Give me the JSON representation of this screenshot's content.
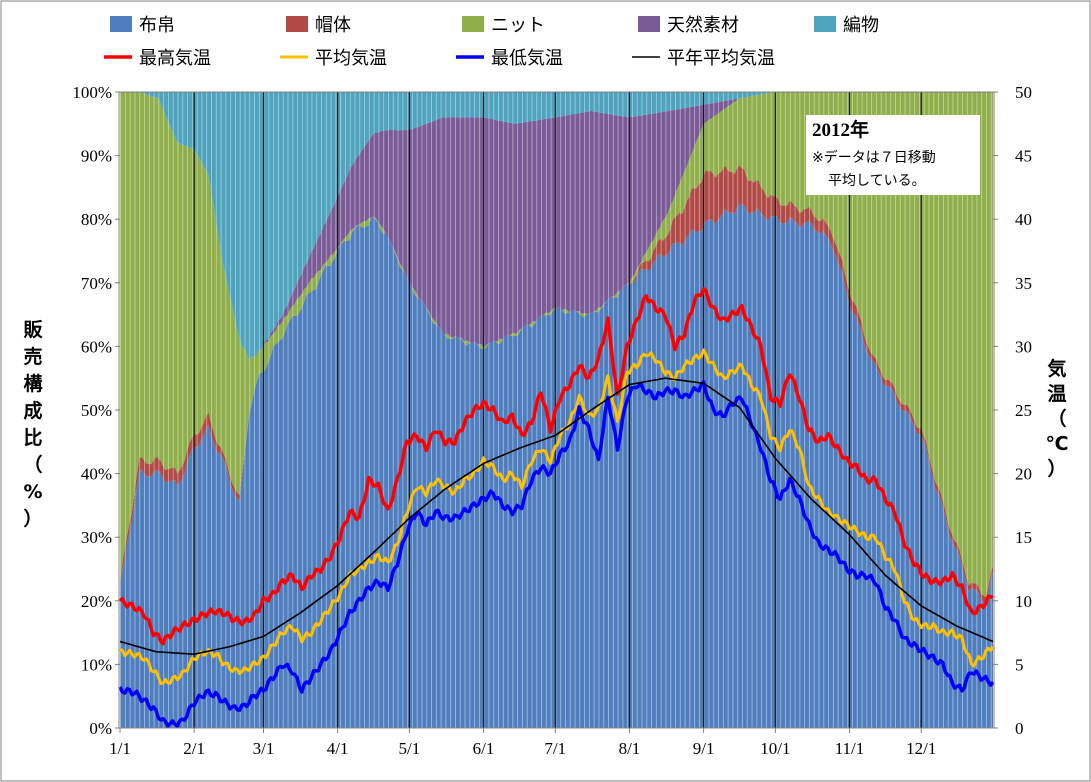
{
  "chart_data": {
    "type": "area",
    "stacking": "percent",
    "x_axis": {
      "tick_labels": [
        "1/1",
        "2/1",
        "3/1",
        "4/1",
        "5/1",
        "6/1",
        "7/1",
        "8/1",
        "9/1",
        "10/1",
        "11/1",
        "12/1"
      ],
      "tick_day_index": [
        0,
        31,
        60,
        91,
        121,
        152,
        182,
        213,
        244,
        274,
        305,
        335
      ],
      "days": 366
    },
    "y_left": {
      "label": "販売構成比（%）",
      "ylim": [
        0,
        100
      ],
      "ticks": [
        "0%",
        "10%",
        "20%",
        "30%",
        "40%",
        "50%",
        "60%",
        "70%",
        "80%",
        "90%",
        "100%"
      ]
    },
    "y_right": {
      "label": "気温（℃）",
      "ylim": [
        0,
        50
      ],
      "ticks": [
        "0",
        "5",
        "10",
        "15",
        "20",
        "25",
        "30",
        "35",
        "40",
        "45",
        "50"
      ]
    },
    "annotation": {
      "title": "2012年",
      "lines": [
        "※データは７日移動",
        "平均している。"
      ]
    },
    "legend": [
      "布帛",
      "帽体",
      "ニット",
      "天然素材",
      "編物",
      "最高気温",
      "平均気温",
      "最低気温",
      "平年平均気温"
    ],
    "legend_placement": "top",
    "area_series": [
      {
        "name": "布帛",
        "color": "#4F7EBF",
        "x": [
          0,
          8,
          16,
          24,
          31,
          37,
          43,
          50,
          54,
          58,
          68,
          79,
          91,
          97,
          106,
          111,
          121,
          135,
          152,
          165,
          182,
          197,
          213,
          229,
          244,
          259,
          274,
          290,
          298,
          305,
          315,
          335,
          345,
          355,
          362,
          365
        ],
        "values": [
          22,
          40,
          40,
          38,
          44,
          47,
          42,
          35,
          50,
          55,
          62,
          68,
          75,
          78,
          80,
          78,
          70,
          62,
          60,
          62,
          66,
          65,
          70,
          75,
          79,
          82,
          80,
          79,
          76,
          67,
          57,
          46,
          33,
          22,
          20,
          24
        ]
      },
      {
        "name": "帽体",
        "color": "#B14A46",
        "x": [
          0,
          8,
          16,
          24,
          31,
          37,
          43,
          50,
          54,
          58,
          68,
          79,
          91,
          97,
          106,
          111,
          121,
          135,
          152,
          165,
          182,
          197,
          213,
          229,
          244,
          259,
          274,
          290,
          298,
          305,
          315,
          335,
          345,
          355,
          362,
          365
        ],
        "values": [
          1,
          2,
          2,
          2,
          2,
          2,
          1,
          1,
          0,
          0,
          0,
          0,
          0,
          0,
          0,
          0,
          0,
          0,
          0,
          0,
          0,
          0,
          0,
          3,
          8,
          6,
          3,
          2,
          2,
          2,
          1,
          1,
          1,
          1,
          1,
          1
        ]
      },
      {
        "name": "ニット",
        "color": "#8FAF4A",
        "x": [
          0,
          8,
          16,
          24,
          31,
          37,
          43,
          50,
          54,
          58,
          68,
          79,
          91,
          97,
          106,
          111,
          121,
          135,
          152,
          165,
          182,
          197,
          213,
          229,
          244,
          259,
          274,
          290,
          298,
          305,
          315,
          335,
          345,
          355,
          362,
          365
        ],
        "values": [
          77,
          58,
          57,
          52,
          45,
          38,
          30,
          25,
          8,
          4,
          2,
          2,
          0.5,
          0.5,
          0.5,
          0,
          0,
          0,
          0,
          0,
          0,
          0,
          0,
          3,
          8,
          11,
          17,
          19,
          22,
          31,
          42,
          53,
          66,
          77,
          79,
          75
        ]
      },
      {
        "name": "天然素材",
        "color": "#7A5A97",
        "x": [
          0,
          8,
          16,
          24,
          31,
          37,
          43,
          50,
          54,
          58,
          68,
          79,
          91,
          97,
          106,
          111,
          121,
          135,
          152,
          165,
          182,
          197,
          213,
          229,
          244,
          259,
          274,
          290,
          298,
          305,
          315,
          335,
          345,
          355,
          362,
          365
        ],
        "values": [
          0,
          0,
          0,
          0,
          0,
          0,
          0,
          0,
          0,
          0,
          1,
          4,
          8,
          10,
          13,
          16,
          24,
          34,
          36,
          33,
          30,
          32,
          26,
          16,
          3,
          0,
          0,
          0,
          0,
          0,
          0,
          0,
          0,
          0,
          0,
          0
        ]
      },
      {
        "name": "編物",
        "color": "#4EA3BE",
        "x": [
          0,
          8,
          16,
          24,
          31,
          37,
          43,
          50,
          54,
          58,
          68,
          79,
          91,
          97,
          106,
          111,
          121,
          135,
          152,
          165,
          182,
          197,
          213,
          229,
          244,
          259,
          274,
          290,
          298,
          305,
          315,
          335,
          345,
          355,
          362,
          365
        ],
        "values": [
          0,
          0,
          1,
          8,
          9,
          13,
          27,
          39,
          42,
          41,
          35,
          26,
          16.5,
          11.5,
          6.5,
          6,
          6,
          4,
          4,
          5,
          4,
          3,
          4,
          3,
          2,
          1,
          0,
          0,
          0,
          0,
          0,
          0,
          0,
          0,
          0,
          0
        ]
      }
    ],
    "line_series": [
      {
        "name": "最高気温",
        "color": "#FF0000",
        "width": 3.5,
        "x": [
          0,
          6,
          10,
          14,
          18,
          22,
          26,
          31,
          36,
          40,
          44,
          48,
          52,
          56,
          60,
          64,
          68,
          72,
          76,
          80,
          84,
          88,
          92,
          96,
          100,
          104,
          108,
          112,
          116,
          120,
          124,
          128,
          132,
          136,
          140,
          144,
          148,
          152,
          156,
          160,
          164,
          168,
          172,
          176,
          180,
          184,
          188,
          192,
          196,
          200,
          204,
          208,
          212,
          216,
          220,
          224,
          228,
          232,
          236,
          240,
          244,
          248,
          252,
          256,
          260,
          264,
          268,
          272,
          276,
          280,
          284,
          288,
          292,
          296,
          300,
          304,
          308,
          312,
          316,
          320,
          324,
          328,
          332,
          336,
          340,
          344,
          348,
          352,
          356,
          360,
          365
        ],
        "values": [
          10,
          9.5,
          9,
          7.5,
          6.8,
          7.5,
          8,
          8.5,
          9,
          9.2,
          9,
          8.5,
          8.3,
          8.8,
          10,
          10.5,
          11.5,
          12,
          11,
          12,
          12.5,
          13.5,
          15,
          17,
          16.5,
          19.5,
          19,
          17,
          19.5,
          22.5,
          23,
          22,
          23.5,
          22.5,
          22.5,
          24,
          25,
          25.5,
          25,
          24,
          24.5,
          23,
          24,
          26.5,
          23.5,
          26,
          27,
          28.5,
          27.5,
          29,
          32,
          26,
          30,
          32,
          34,
          33,
          32.5,
          30,
          31,
          33.5,
          34.5,
          33,
          32,
          32.5,
          33,
          31.5,
          30,
          26,
          25.5,
          28,
          26,
          23.5,
          22.5,
          23,
          22,
          21,
          20.5,
          19.5,
          19.5,
          18,
          17,
          14.5,
          13,
          12,
          11.5,
          11.5,
          12,
          11,
          9,
          9.5,
          10.5
        ]
      },
      {
        "name": "平均気温",
        "color": "#FFC000",
        "width": 3,
        "x": [
          0,
          6,
          10,
          14,
          18,
          22,
          26,
          31,
          36,
          40,
          44,
          48,
          52,
          56,
          60,
          64,
          68,
          72,
          76,
          80,
          84,
          88,
          92,
          96,
          100,
          104,
          108,
          112,
          116,
          120,
          124,
          128,
          132,
          136,
          140,
          144,
          148,
          152,
          156,
          160,
          164,
          168,
          172,
          176,
          180,
          184,
          188,
          192,
          196,
          200,
          204,
          208,
          212,
          216,
          220,
          224,
          228,
          232,
          236,
          240,
          244,
          248,
          252,
          256,
          260,
          264,
          268,
          272,
          276,
          280,
          284,
          288,
          292,
          296,
          300,
          304,
          308,
          312,
          316,
          320,
          324,
          328,
          332,
          336,
          340,
          344,
          348,
          352,
          356,
          360,
          365
        ],
        "values": [
          6,
          5.8,
          5.5,
          4.5,
          3.5,
          3.8,
          4.2,
          5.5,
          6,
          5.8,
          5,
          4.5,
          4.5,
          5,
          5.5,
          6.5,
          7.5,
          8,
          7,
          7.5,
          8.5,
          9.5,
          10.5,
          12,
          12.5,
          13,
          13.5,
          13,
          14.5,
          17,
          19,
          18.5,
          19.5,
          19,
          18.5,
          19.5,
          20,
          21,
          20.5,
          19.5,
          20,
          19,
          21,
          22,
          21,
          23,
          24,
          26,
          24.5,
          25,
          27.5,
          24,
          28,
          28.5,
          29.5,
          29,
          28,
          27.5,
          28.5,
          29,
          29.5,
          28.5,
          27.5,
          28,
          28.5,
          27,
          26,
          23,
          22,
          23.5,
          22,
          19,
          18,
          17,
          16.5,
          16,
          15.5,
          15,
          15,
          13.5,
          12.5,
          10,
          8.5,
          8,
          8,
          7.5,
          7.5,
          7,
          5,
          5.5,
          6.5
        ]
      },
      {
        "name": "最低気温",
        "color": "#0000FF",
        "width": 3.5,
        "x": [
          0,
          6,
          10,
          14,
          18,
          22,
          26,
          31,
          36,
          40,
          44,
          48,
          52,
          56,
          60,
          64,
          68,
          72,
          76,
          80,
          84,
          88,
          92,
          96,
          100,
          104,
          108,
          112,
          116,
          120,
          124,
          128,
          132,
          136,
          140,
          144,
          148,
          152,
          156,
          160,
          164,
          168,
          172,
          176,
          180,
          184,
          188,
          192,
          196,
          200,
          204,
          208,
          212,
          216,
          220,
          224,
          228,
          232,
          236,
          240,
          244,
          248,
          252,
          256,
          260,
          264,
          268,
          272,
          276,
          280,
          284,
          288,
          292,
          296,
          300,
          304,
          308,
          312,
          316,
          320,
          324,
          328,
          332,
          336,
          340,
          344,
          348,
          352,
          356,
          360,
          365
        ],
        "values": [
          3,
          2.8,
          2.2,
          1.5,
          0.5,
          0.3,
          0.5,
          2,
          2.8,
          2.6,
          2,
          1.5,
          1.7,
          2.5,
          3,
          4,
          5,
          4.5,
          3,
          4,
          5,
          6,
          7.5,
          9,
          10,
          11,
          11.5,
          11,
          13,
          15.5,
          17,
          16,
          17,
          16.5,
          16.5,
          17,
          17.5,
          18,
          18.5,
          17.5,
          17,
          17.5,
          19.5,
          20.5,
          20,
          21.5,
          22.5,
          25,
          23.5,
          21,
          26,
          22,
          26,
          27,
          26.5,
          26,
          26.5,
          26.5,
          26,
          26.5,
          27,
          25,
          24.5,
          25.5,
          26,
          24,
          22,
          19.5,
          18,
          19.5,
          18,
          16,
          14.5,
          14,
          13.5,
          12.5,
          12,
          12,
          11.5,
          9.5,
          8.5,
          7,
          6.5,
          6,
          5.5,
          5,
          3.5,
          3,
          4.5,
          4,
          3.5
        ]
      },
      {
        "name": "平年平均気温",
        "color": "#000000",
        "width": 1.6,
        "x": [
          0,
          15,
          31,
          46,
          60,
          75,
          91,
          106,
          121,
          136,
          152,
          167,
          182,
          197,
          213,
          228,
          244,
          259,
          274,
          289,
          305,
          320,
          335,
          350,
          365
        ],
        "values": [
          6.8,
          6,
          5.8,
          6.4,
          7.2,
          9,
          11.2,
          13.8,
          16.5,
          18.8,
          20.8,
          22,
          23,
          25,
          27,
          27.5,
          27.1,
          25.2,
          21.2,
          18,
          15.2,
          12,
          9.6,
          8,
          6.8
        ]
      }
    ]
  }
}
